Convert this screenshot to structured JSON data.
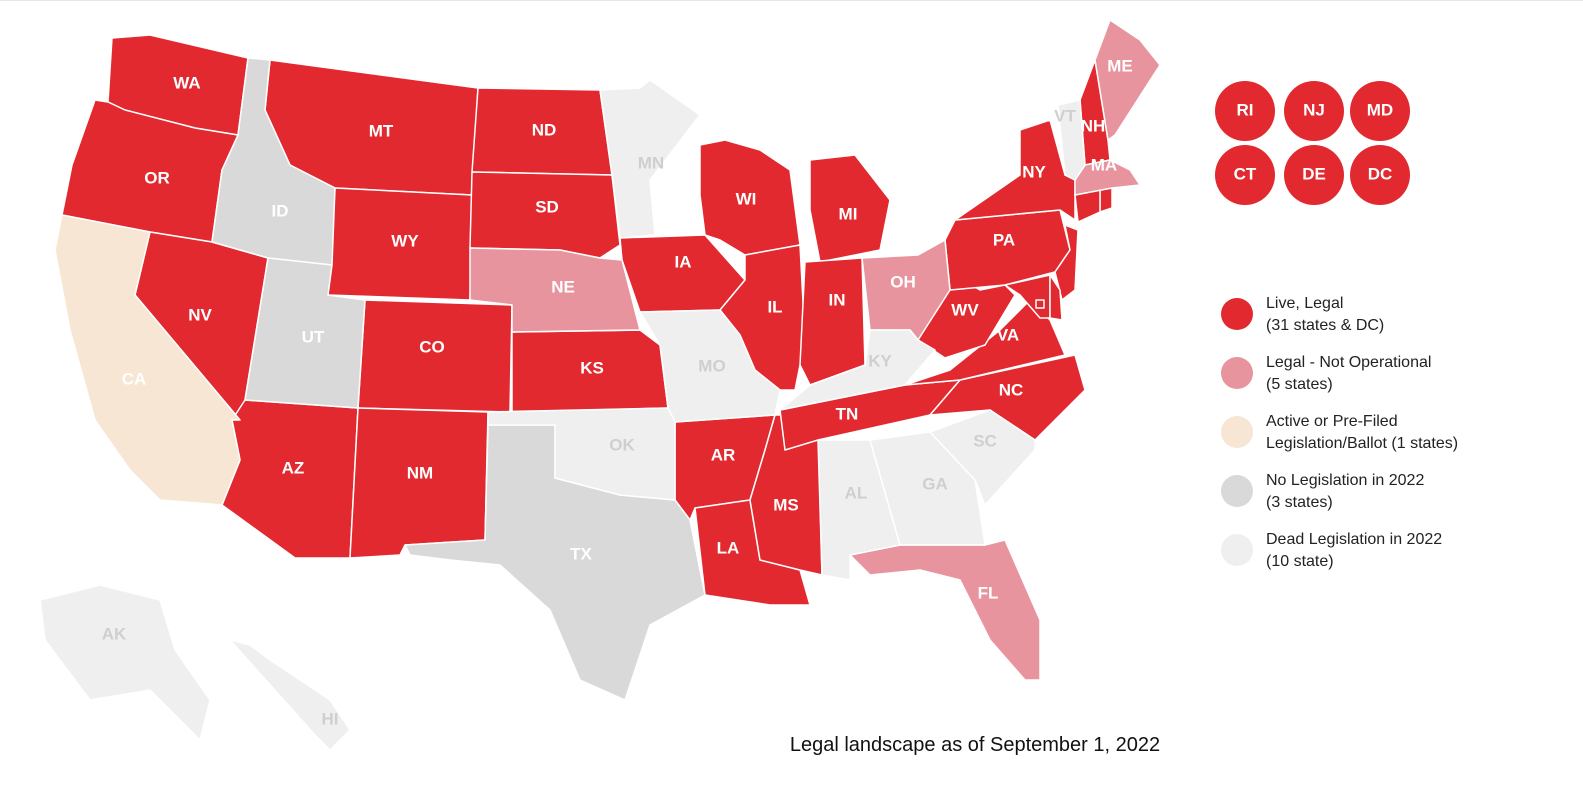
{
  "map": {
    "caption": "Legal landscape as of September 1, 2022",
    "groups": [
      {
        "color": "#e1292f",
        "label_color": "#ffffff",
        "label": [
          "Live, Legal",
          "(31 states & DC)"
        ],
        "states": [
          "WA",
          "OR",
          "NV",
          "MT",
          "WY",
          "CO",
          "AZ",
          "NM",
          "ND",
          "SD",
          "KS",
          "IA",
          "AR",
          "LA",
          "MS",
          "WI",
          "MI",
          "IL",
          "IN",
          "TN",
          "NC",
          "VA",
          "WV",
          "PA",
          "NY",
          "NH",
          "RI",
          "NJ",
          "MD",
          "CT",
          "DE",
          "DC"
        ]
      },
      {
        "color": "#e8949e",
        "label_color": "#ffffff",
        "label": [
          "Legal - Not Operational",
          "(5 states)"
        ],
        "states": [
          "ME",
          "MA",
          "NE",
          "OH",
          "FL"
        ]
      },
      {
        "color": "#f7e6d4",
        "label_color": "#ffffff",
        "label": [
          "Active or Pre-Filed",
          "Legislation/Ballot (1 states)"
        ],
        "states": [
          "CA"
        ]
      },
      {
        "color": "#d9d9d9",
        "label_color": "#ffffff",
        "label": [
          "No Legislation in 2022",
          "(3 states)"
        ],
        "states": [
          "ID",
          "UT",
          "TX"
        ]
      },
      {
        "color": "#efefef",
        "label_color": "#cfcfcf",
        "label": [
          "Dead Legislation in 2022",
          "(10 state)"
        ],
        "states": [
          "MN",
          "MO",
          "OK",
          "KY",
          "AL",
          "GA",
          "SC",
          "VT",
          "AK",
          "HI"
        ]
      }
    ]
  }
}
